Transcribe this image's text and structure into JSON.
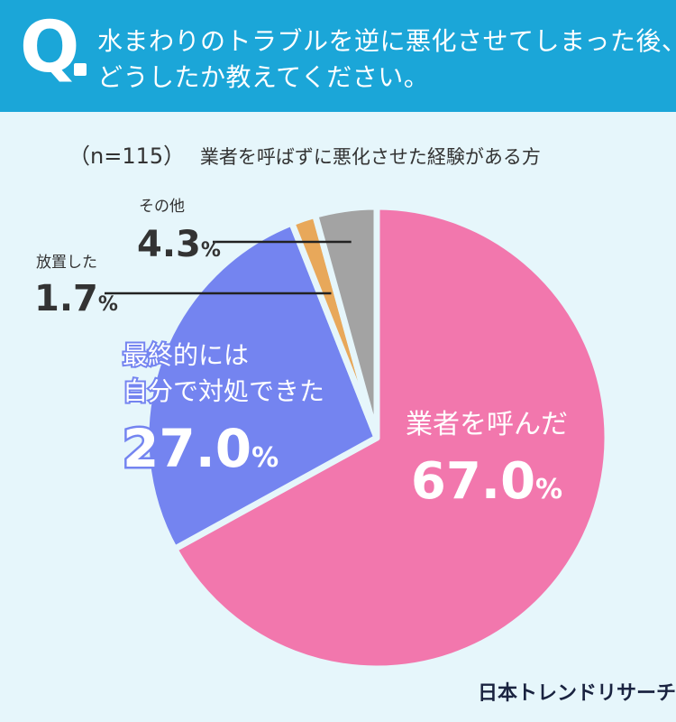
{
  "question": {
    "mark": "Q",
    "line1": "水まわりのトラブルを逆に悪化させてしまった後、",
    "line2": "どうしたか教えてください。"
  },
  "sample": {
    "n": "（n=115）",
    "description": "業者を呼ばずに悪化させた経験がある方"
  },
  "brand": "日本トレンドリサーチ",
  "chart_data": {
    "type": "pie",
    "start_angle_deg": 0,
    "direction": "clockwise",
    "slices": [
      {
        "label": "業者を呼んだ",
        "value": 67.0,
        "display": "67.0",
        "unit": "%",
        "color": "#f277ad"
      },
      {
        "label": "最終的には自分で対処できた",
        "label_lines": [
          "最終的には",
          "自分で対処できた"
        ],
        "value": 27.0,
        "display": "27.0",
        "unit": "%",
        "color": "#7484f0"
      },
      {
        "label": "放置した",
        "value": 1.7,
        "display": "1.7",
        "unit": "%",
        "color": "#e8a85a"
      },
      {
        "label": "その他",
        "value": 4.3,
        "display": "4.3",
        "unit": "%",
        "color": "#a3a3a3"
      }
    ]
  }
}
